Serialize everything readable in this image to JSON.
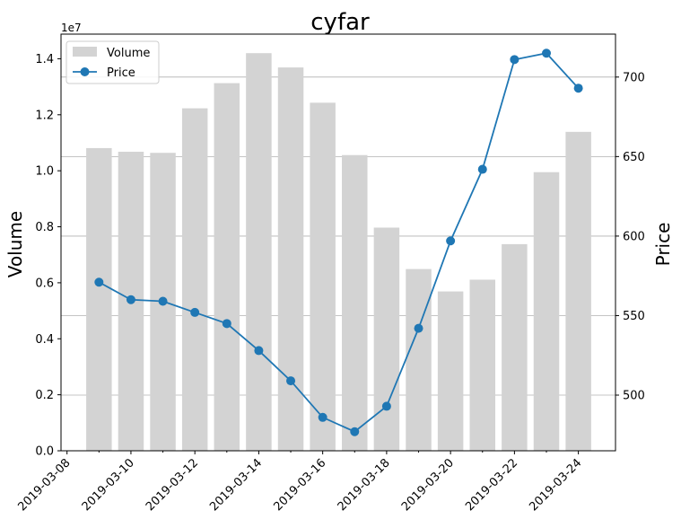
{
  "chart_data": {
    "type": "bar+line",
    "title": "cyfar",
    "dates": [
      "2019-03-09",
      "2019-03-10",
      "2019-03-11",
      "2019-03-12",
      "2019-03-13",
      "2019-03-14",
      "2019-03-15",
      "2019-03-16",
      "2019-03-17",
      "2019-03-18",
      "2019-03-19",
      "2019-03-20",
      "2019-03-21",
      "2019-03-22",
      "2019-03-23",
      "2019-03-24"
    ],
    "x_ticks": [
      "2019-03-08",
      "2019-03-10",
      "2019-03-12",
      "2019-03-14",
      "2019-03-16",
      "2019-03-18",
      "2019-03-20",
      "2019-03-22",
      "2019-03-24"
    ],
    "series": [
      {
        "name": "Volume",
        "kind": "bar",
        "axis": "left",
        "color": "#d3d3d3",
        "values": [
          10810000,
          10680000,
          10640000,
          12230000,
          13130000,
          14200000,
          13690000,
          12430000,
          10560000,
          7970000,
          6490000,
          5690000,
          6110000,
          7380000,
          9950000,
          11390000
        ]
      },
      {
        "name": "Price",
        "kind": "line",
        "axis": "right",
        "color": "#1f77b4",
        "values": [
          571,
          560,
          559,
          552,
          545,
          528,
          509,
          486,
          477,
          493,
          542,
          597,
          642,
          711,
          715,
          693
        ]
      }
    ],
    "y_left": {
      "label": "Volume",
      "offset_label": "1e7",
      "ylim": [
        0,
        14880000
      ],
      "ticks": [
        0,
        2000000,
        4000000,
        6000000,
        8000000,
        10000000,
        12000000,
        14000000
      ],
      "tick_labels": [
        "0.0",
        "0.2",
        "0.4",
        "0.6",
        "0.8",
        "1.0",
        "1.2",
        "1.4"
      ]
    },
    "y_right": {
      "label": "Price",
      "ylim": [
        465,
        727
      ],
      "ticks": [
        500,
        550,
        600,
        650,
        700
      ],
      "tick_labels": [
        "500",
        "550",
        "600",
        "650",
        "700"
      ]
    },
    "grid": "horizontal, right axis",
    "legend": "upper left"
  }
}
